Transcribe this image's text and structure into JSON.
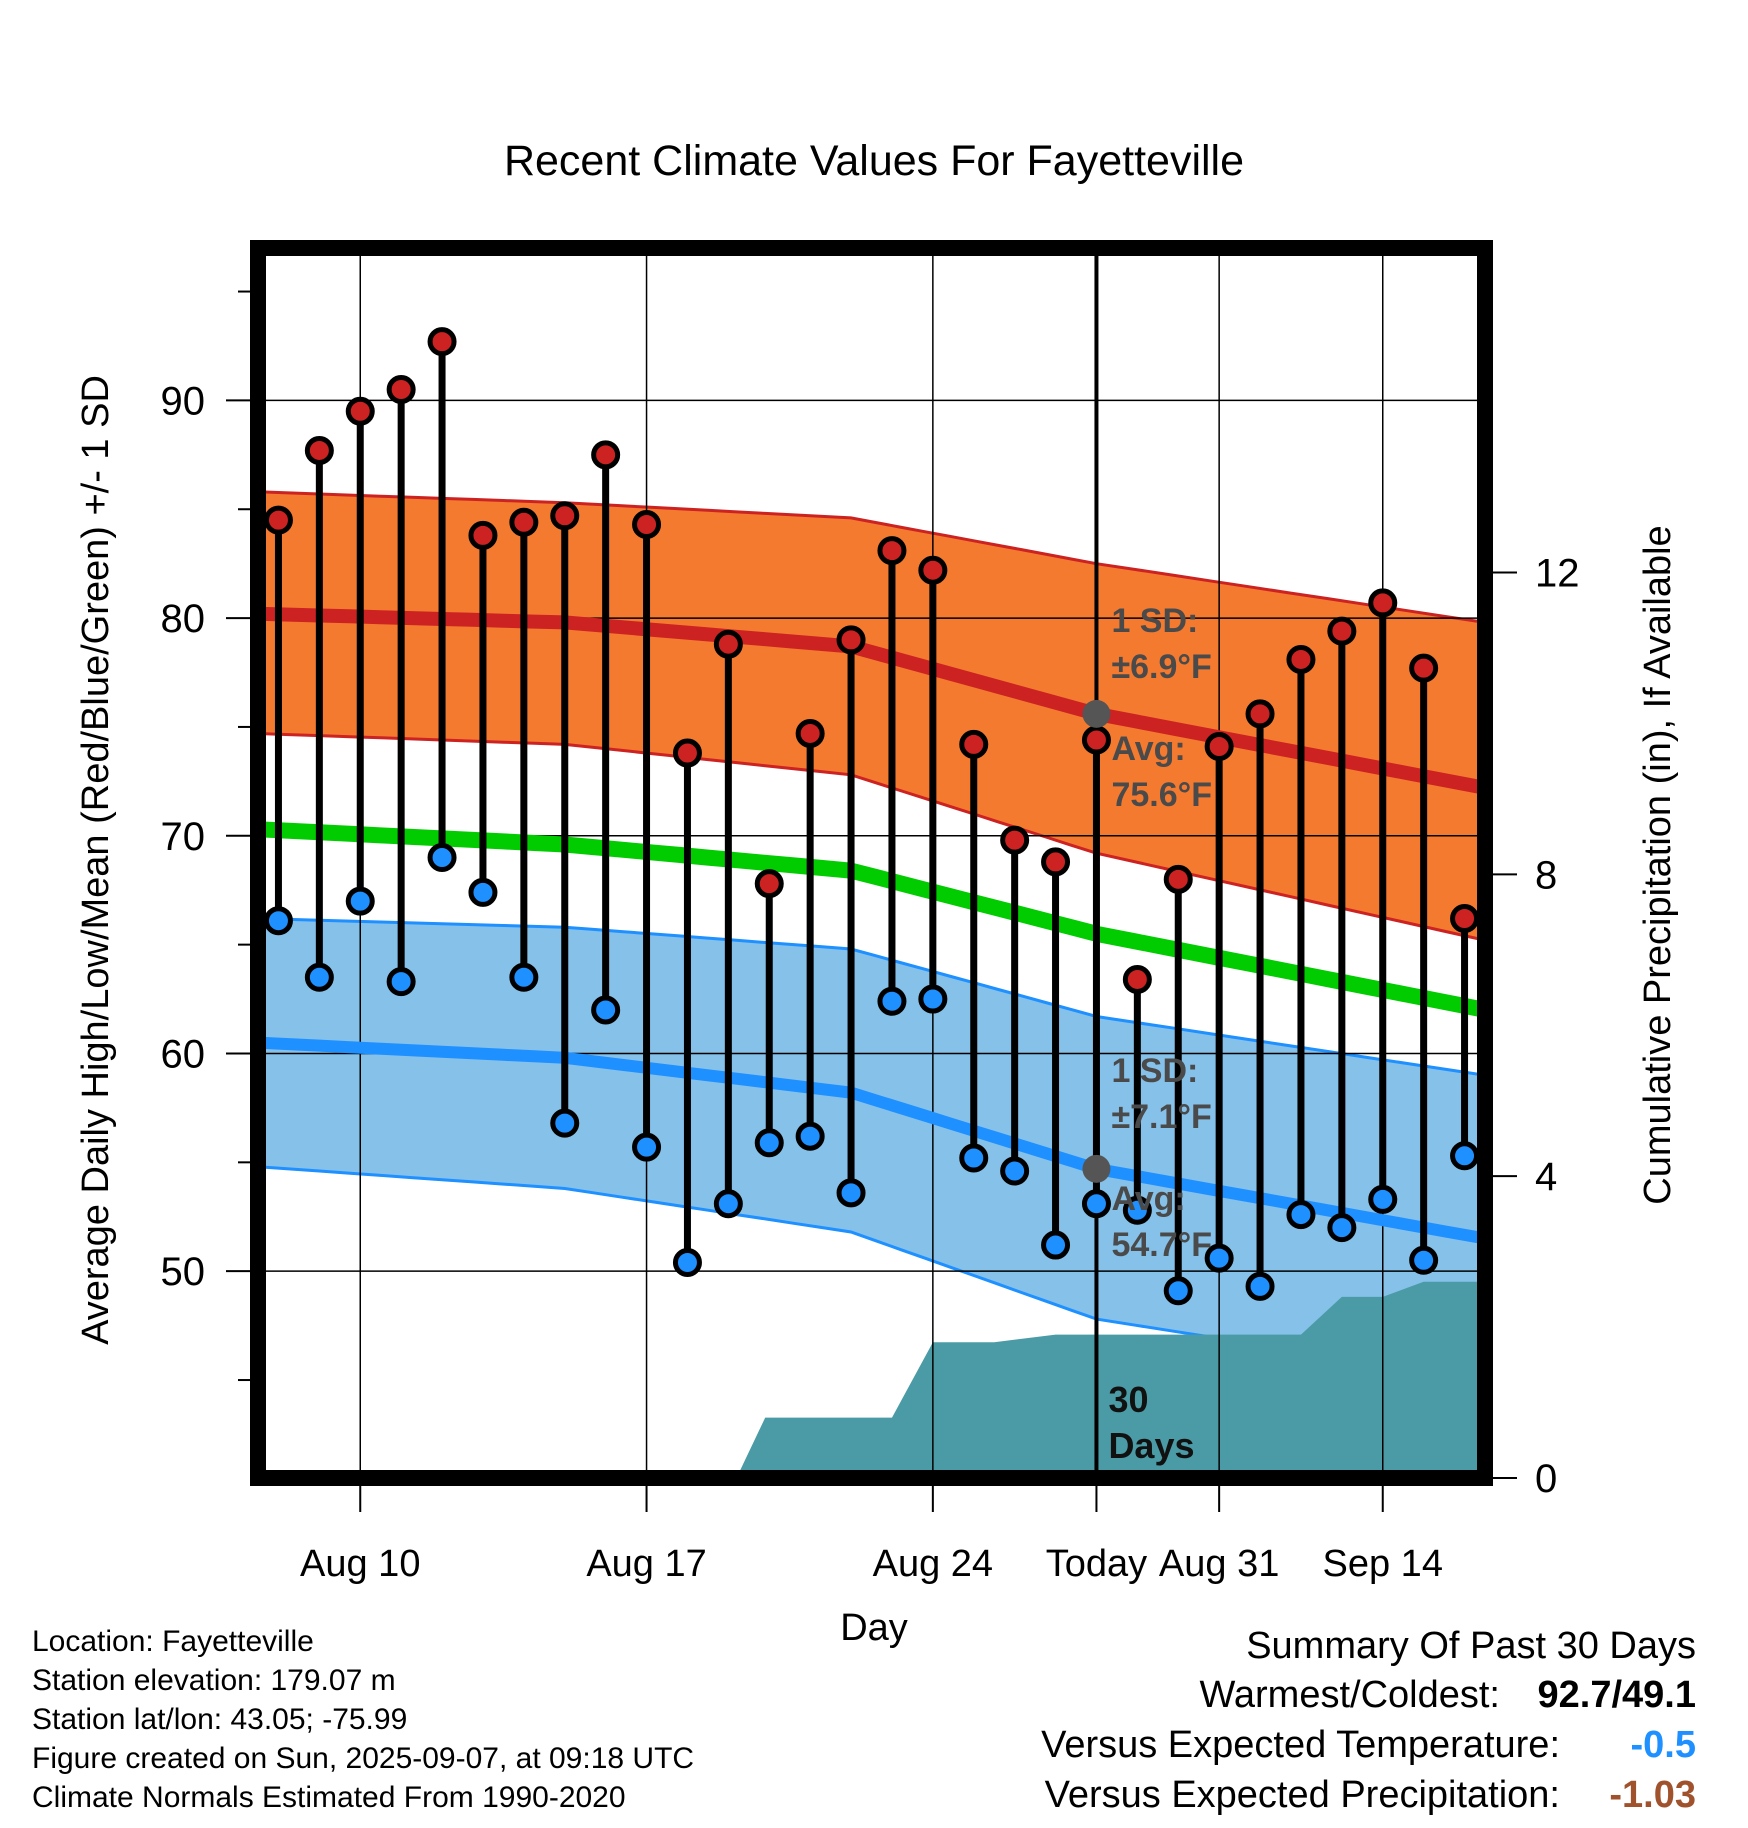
{
  "title": "Recent Climate Values For Fayetteville",
  "chart_data": {
    "type": "line",
    "title": "Recent Climate Values For Fayetteville",
    "xlabel": "Day",
    "ylabel": "Average Daily High/Low/Mean (Red/Blue/Green) +/- 1 SD",
    "ylabel_right": "Cumulative Precipitation (in), If Available",
    "ylim": [
      40.5,
      97
    ],
    "y2lim": [
      0,
      16.3
    ],
    "x_ticks": [
      "Aug 10",
      "Aug 17",
      "Aug 24",
      "Aug 31",
      "Today",
      "Sep 14"
    ],
    "y_ticks": [
      50,
      60,
      70,
      80,
      90
    ],
    "y2_ticks": [
      0,
      4,
      8,
      12
    ],
    "grid": true,
    "today_day": 28,
    "days": [
      8,
      9,
      10,
      11,
      12,
      13,
      14,
      15,
      16,
      17,
      18,
      19,
      20,
      21,
      22,
      23,
      24,
      25,
      26,
      27,
      28,
      29,
      30,
      31,
      32,
      33,
      34,
      35,
      36,
      37
    ],
    "series": [
      {
        "name": "High",
        "color": "#cc2222",
        "values": [
          84.5,
          87.7,
          89.5,
          90.5,
          92.7,
          83.8,
          84.4,
          84.7,
          87.5,
          84.3,
          73.8,
          78.8,
          67.8,
          74.7,
          79.0,
          83.1,
          82.2,
          74.2,
          69.8,
          68.8,
          74.4,
          63.4,
          68.0,
          74.1,
          75.6,
          78.1,
          79.4,
          80.7,
          77.7,
          66.2
        ]
      },
      {
        "name": "Low",
        "color": "#1e90ff",
        "values": [
          66.1,
          63.5,
          67.0,
          63.3,
          69.0,
          67.4,
          63.5,
          56.8,
          62.0,
          55.7,
          50.4,
          53.1,
          55.9,
          56.2,
          53.6,
          62.4,
          62.5,
          55.2,
          54.6,
          51.2,
          53.1,
          52.8,
          49.1,
          50.6,
          49.3,
          52.6,
          52.0,
          53.3,
          50.5,
          55.3
        ]
      }
    ],
    "normals": {
      "high_avg": [
        [
          7.5,
          80.2
        ],
        [
          15,
          79.8
        ],
        [
          22,
          78.7
        ],
        [
          28,
          75.6
        ],
        [
          37.5,
          72.2
        ]
      ],
      "high_upper": [
        [
          7.5,
          85.8
        ],
        [
          15,
          85.3
        ],
        [
          22,
          84.6
        ],
        [
          28,
          82.5
        ],
        [
          37.5,
          79.8
        ]
      ],
      "high_lower": [
        [
          7.5,
          74.7
        ],
        [
          15,
          74.2
        ],
        [
          22,
          72.8
        ],
        [
          28,
          69.2
        ],
        [
          37.5,
          65.2
        ]
      ],
      "mean_avg": [
        [
          7.5,
          70.3
        ],
        [
          15,
          69.6
        ],
        [
          22,
          68.4
        ],
        [
          28,
          65.5
        ],
        [
          37.5,
          62.0
        ]
      ],
      "low_avg": [
        [
          7.5,
          60.5
        ],
        [
          15,
          59.8
        ],
        [
          22,
          58.2
        ],
        [
          28,
          54.7
        ],
        [
          37.5,
          51.5
        ]
      ],
      "low_upper": [
        [
          7.5,
          66.2
        ],
        [
          15,
          65.8
        ],
        [
          22,
          64.8
        ],
        [
          28,
          61.7
        ],
        [
          37.5,
          59.0
        ]
      ],
      "low_lower": [
        [
          7.5,
          54.8
        ],
        [
          15,
          53.8
        ],
        [
          22,
          51.8
        ],
        [
          28,
          47.8
        ],
        [
          37.5,
          45.0
        ]
      ]
    },
    "precip_cumulative": [
      [
        19.2,
        0
      ],
      [
        19.9,
        0.8
      ],
      [
        23,
        0.8
      ],
      [
        24,
        1.8
      ],
      [
        25.5,
        1.8
      ],
      [
        27,
        1.9
      ],
      [
        30,
        1.9
      ],
      [
        31.5,
        1.9
      ],
      [
        33,
        1.9
      ],
      [
        34,
        2.4
      ],
      [
        35,
        2.4
      ],
      [
        36,
        2.6
      ],
      [
        37.5,
        2.6
      ]
    ],
    "annotations": {
      "high_sd": "1 SD:",
      "high_sd_value": "±6.9°F",
      "high_avg_label": "Avg:",
      "high_avg_value": "75.6°F",
      "low_sd": "1 SD:",
      "low_sd_value": "±7.1°F",
      "low_avg_label": "Avg:",
      "low_avg_value": "54.7°F",
      "days_num": "30",
      "days_word": "Days"
    }
  },
  "footer": {
    "location": "Location: Fayetteville",
    "elevation": "Station elevation: 179.07 m",
    "latlon": "Station lat/lon: 43.05; -75.99",
    "created": "Figure created on Sun, 2025-09-07, at 09:18 UTC",
    "normals": "Climate Normals Estimated From 1990-2020"
  },
  "summary": {
    "heading": "Summary Of Past 30 Days",
    "warmest_label": "Warmest/Coldest:",
    "warmest_value": "92.7/49.1",
    "temp_label": "Versus Expected Temperature:",
    "temp_value": "-0.5",
    "precip_label": "Versus Expected Precipitation:",
    "precip_value": "-1.03"
  },
  "colors": {
    "high": "#cc2222",
    "high_band": "#f47a30",
    "mean": "#00cc00",
    "low": "#1e90ff",
    "low_band": "#85c1e9",
    "precip": "#4a9ba5",
    "today_marker": "#555555"
  }
}
